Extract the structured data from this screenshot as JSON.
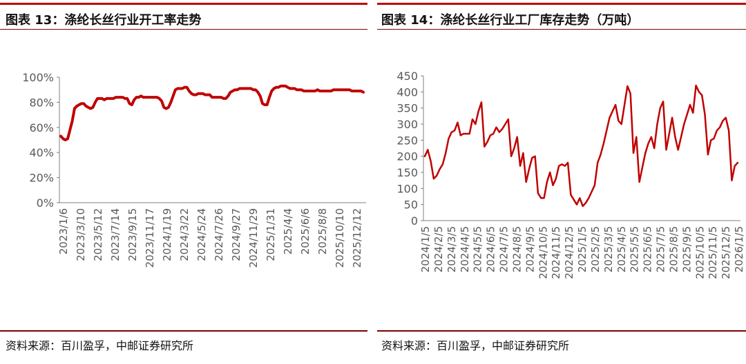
{
  "left_panel": {
    "title": "图表 13：涤纶长丝行业开工率走势",
    "source": "资料来源：百川盈孚，中邮证券研究所"
  },
  "right_panel": {
    "title": "图表 14：涤纶长丝行业工厂库存走势（万吨）",
    "source": "资料来源：百川盈孚，中邮证券研究所"
  },
  "colors": {
    "accent": "#c00000",
    "line": "#c00000",
    "axis": "#7f7f7f",
    "tick_text": "#595959"
  },
  "chart_data": [
    {
      "type": "line",
      "title": "涤纶长丝行业开工率走势",
      "y_unit": "%",
      "ylim": [
        0,
        100
      ],
      "yticks": [
        "0%",
        "20%",
        "40%",
        "60%",
        "80%",
        "100%"
      ],
      "grid": false,
      "x_tick_labels": [
        "2023/1/6",
        "2023/3/10",
        "2023/5/12",
        "2023/7/14",
        "2023/9/15",
        "2023/11/17",
        "2024/1/19",
        "2024/3/22",
        "2024/5/24",
        "2024/7/26",
        "2024/9/27",
        "2024/11/29",
        "2025/1/31",
        "2025/4/4",
        "2025/6/6",
        "2025/8/8",
        "2025/10/10",
        "2025/12/12"
      ],
      "series": [
        {
          "name": "",
          "frequency": "weekly",
          "start": "2023/1/6",
          "values": [
            53,
            51,
            50,
            51,
            58,
            65,
            75,
            77,
            78,
            79,
            79,
            77,
            76,
            75,
            76,
            80,
            83,
            83,
            83,
            82,
            83,
            83,
            83,
            83,
            84,
            84,
            84,
            84,
            83,
            83,
            79,
            78,
            82,
            84,
            84,
            85,
            84,
            84,
            84,
            84,
            84,
            84,
            84,
            83,
            81,
            76,
            75,
            76,
            80,
            85,
            90,
            91,
            91,
            91,
            92,
            92,
            89,
            87,
            86,
            86,
            87,
            87,
            87,
            86,
            86,
            86,
            84,
            84,
            84,
            84,
            84,
            83,
            83,
            85,
            88,
            89,
            90,
            90,
            91,
            91,
            91,
            91,
            91,
            91,
            90,
            90,
            88,
            85,
            79,
            78,
            78,
            84,
            89,
            91,
            92,
            92,
            93,
            93,
            93,
            92,
            91,
            91,
            91,
            90,
            90,
            90,
            89,
            89,
            89,
            89,
            89,
            89,
            90,
            89,
            89,
            89,
            89,
            89,
            89,
            90,
            90,
            90,
            90,
            90,
            90,
            90,
            90,
            89,
            89,
            89,
            89,
            89,
            88
          ]
        }
      ]
    },
    {
      "type": "line",
      "title": "涤纶长丝行业工厂库存走势（万吨）",
      "ylim": [
        0,
        450
      ],
      "yticks": [
        0,
        50,
        100,
        150,
        200,
        250,
        300,
        350,
        400,
        450
      ],
      "grid": false,
      "x_tick_labels": [
        "2024/1/5",
        "2024/2/5",
        "2024/3/5",
        "2024/4/5",
        "2024/5/5",
        "2024/6/5",
        "2024/7/5",
        "2024/8/5",
        "2024/9/5",
        "2024/10/5",
        "2024/11/5",
        "2024/12/5",
        "2025/1/5",
        "2025/2/5",
        "2025/3/5",
        "2025/4/5",
        "2025/5/5",
        "2025/6/5",
        "2025/7/5",
        "2025/8/5",
        "2025/9/5",
        "2025/10/5",
        "2025/11/5",
        "2025/12/5",
        "2026/1/5"
      ],
      "series": [
        {
          "name": "",
          "frequency": "weekly",
          "start": "2024/1/5",
          "values": [
            200,
            220,
            185,
            130,
            140,
            160,
            175,
            210,
            255,
            275,
            280,
            305,
            265,
            270,
            270,
            270,
            315,
            300,
            340,
            368,
            230,
            245,
            265,
            270,
            290,
            275,
            285,
            300,
            315,
            200,
            225,
            260,
            170,
            210,
            120,
            160,
            195,
            200,
            85,
            70,
            70,
            120,
            150,
            110,
            130,
            170,
            175,
            170,
            180,
            80,
            65,
            50,
            70,
            45,
            55,
            70,
            90,
            110,
            180,
            205,
            240,
            280,
            320,
            340,
            360,
            310,
            300,
            360,
            418,
            395,
            210,
            260,
            120,
            165,
            210,
            240,
            260,
            225,
            300,
            350,
            370,
            220,
            270,
            320,
            260,
            220,
            260,
            300,
            330,
            360,
            335,
            420,
            400,
            390,
            330,
            205,
            250,
            255,
            280,
            290,
            310,
            320,
            280,
            125,
            170,
            180
          ]
        }
      ]
    }
  ]
}
